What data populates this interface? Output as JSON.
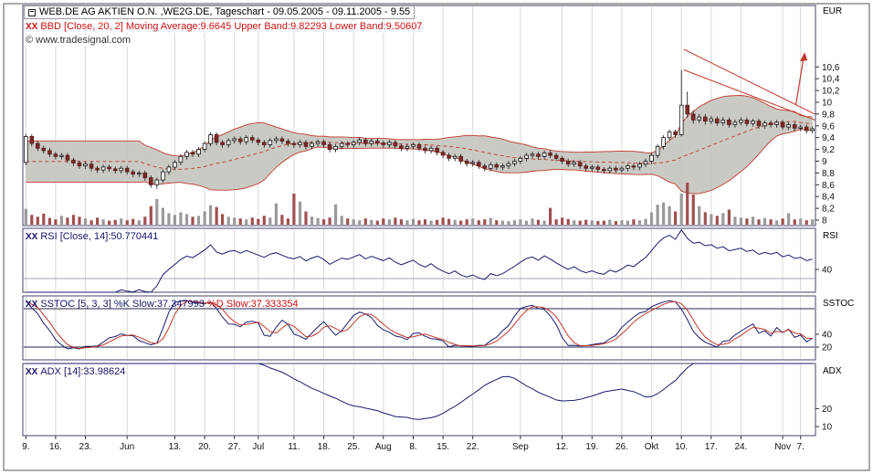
{
  "header": {
    "title": "WEB.DE AG AKTIEN O.N. ,WE2G.DE, Tageschart - 09.05.2005 - 09.11.2005 - 9.55",
    "watermark": "© www.tradesignal.com",
    "currency_label": "EUR"
  },
  "icons": {
    "window": "window-icon",
    "toggle": "XX"
  },
  "indicators": {
    "bbd": {
      "label": "BBD [Close, 20, 2] Moving Average:9.6645 Upper Band:9.82293 Lower Band:9.50607"
    },
    "rsi": {
      "label": "RSI [Close, 14]:50.770441",
      "axis_title": "RSI"
    },
    "sstoc": {
      "label_k": "SSTOC [5, 3, 3] %K Slow:37.347993 ",
      "label_d": "%D Slow:37.333354",
      "axis_title": "SSTOC"
    },
    "adx": {
      "label": "ADX [14]:33.98624",
      "axis_title": "ADX"
    }
  },
  "axes": {
    "price_ticks": [
      {
        "v": 10.6,
        "label": "10,6"
      },
      {
        "v": 10.4,
        "label": "10,4"
      },
      {
        "v": 10.2,
        "label": "10,2"
      },
      {
        "v": 10,
        "label": "10"
      },
      {
        "v": 9.8,
        "label": "9,8"
      },
      {
        "v": 9.6,
        "label": "9,6"
      },
      {
        "v": 9.4,
        "label": "9,4"
      },
      {
        "v": 9.2,
        "label": "9,2"
      },
      {
        "v": 9,
        "label": "9"
      },
      {
        "v": 8.8,
        "label": "8,8"
      },
      {
        "v": 8.6,
        "label": "8,6"
      },
      {
        "v": 8.4,
        "label": "8,4"
      },
      {
        "v": 8.2,
        "label": "8,2"
      },
      {
        "v": 8,
        "label": "8"
      }
    ],
    "x_ticks": [
      {
        "i": 0,
        "label": "9."
      },
      {
        "i": 5,
        "label": "16."
      },
      {
        "i": 10,
        "label": "23."
      },
      {
        "i": 17,
        "label": "Jun"
      },
      {
        "i": 25,
        "label": "13."
      },
      {
        "i": 30,
        "label": "20."
      },
      {
        "i": 35,
        "label": "27."
      },
      {
        "i": 39,
        "label": "Jul"
      },
      {
        "i": 45,
        "label": "11."
      },
      {
        "i": 50,
        "label": "18."
      },
      {
        "i": 55,
        "label": "25."
      },
      {
        "i": 60,
        "label": "Aug"
      },
      {
        "i": 65,
        "label": "8."
      },
      {
        "i": 70,
        "label": "15."
      },
      {
        "i": 75,
        "label": "22."
      },
      {
        "i": 83,
        "label": "Sep"
      },
      {
        "i": 90,
        "label": "12."
      },
      {
        "i": 95,
        "label": "19."
      },
      {
        "i": 100,
        "label": "26."
      },
      {
        "i": 105,
        "label": "Okt"
      },
      {
        "i": 110,
        "label": "10."
      },
      {
        "i": 115,
        "label": "17."
      },
      {
        "i": 120,
        "label": "24."
      },
      {
        "i": 127,
        "label": "Nov"
      },
      {
        "i": 130,
        "label": "7."
      }
    ],
    "rsi_ticks": [
      {
        "v": 40,
        "label": "40"
      }
    ],
    "sstoc_ticks": [
      {
        "v": 40,
        "label": "40"
      },
      {
        "v": 20,
        "label": "20"
      }
    ],
    "adx_ticks": [
      {
        "v": 20,
        "label": "20"
      },
      {
        "v": 10,
        "label": "10"
      }
    ]
  },
  "colors": {
    "grid": "#d9d9d9",
    "panel_border": "#44446a",
    "band_fill": "#c4c4bf",
    "band_line": "#c0392b",
    "candle_up_fill": "#ffffff",
    "candle_down_fill": "#7e2a2a",
    "wick": "#111111",
    "vol_up": "#9a9a9a",
    "vol_down": "#a05050",
    "indicator_line": "#1b1b6f",
    "indicator_line2": "#c0392b",
    "annotation": "#c0392b",
    "text": "#111111"
  },
  "chart_data": {
    "type": "candlestick",
    "symbol": "WE2G.DE",
    "period": "09.05.2005 - 09.11.2005",
    "timeframe": "Tageschart",
    "last_price": 9.55,
    "panels": [
      "price+bollinger+volume",
      "rsi",
      "sstoc",
      "adx"
    ],
    "indicator_params": {
      "bollinger": [
        20,
        2
      ],
      "rsi": [
        14
      ],
      "sstoc": [
        5,
        3,
        3
      ],
      "adx": [
        14
      ]
    },
    "indicator_last_values": {
      "bbd_ma": 9.6645,
      "bbd_upper": 9.82293,
      "bbd_lower": 9.50607,
      "rsi": 50.770441,
      "sstoc_k": 37.347993,
      "sstoc_d": 37.333354,
      "adx": 33.98624
    },
    "ylim": [
      8,
      10.6
    ],
    "candles": [
      [
        8.98,
        9.46,
        8.93,
        9.42
      ],
      [
        9.42,
        9.46,
        9.25,
        9.3
      ],
      [
        9.3,
        9.34,
        9.17,
        9.22
      ],
      [
        9.22,
        9.26,
        9.13,
        9.18
      ],
      [
        9.18,
        9.22,
        9.07,
        9.12
      ],
      [
        9.12,
        9.16,
        9.03,
        9.08
      ],
      [
        9.08,
        9.14,
        9.03,
        9.1
      ],
      [
        9.1,
        9.14,
        8.97,
        9.02
      ],
      [
        9.02,
        9.06,
        8.92,
        8.97
      ],
      [
        8.97,
        9.01,
        8.87,
        8.92
      ],
      [
        8.92,
        8.99,
        8.87,
        8.95
      ],
      [
        8.95,
        8.99,
        8.83,
        8.88
      ],
      [
        8.88,
        8.92,
        8.8,
        8.85
      ],
      [
        8.85,
        8.94,
        8.8,
        8.9
      ],
      [
        8.9,
        8.94,
        8.82,
        8.87
      ],
      [
        8.87,
        8.91,
        8.79,
        8.84
      ],
      [
        8.84,
        8.92,
        8.79,
        8.88
      ],
      [
        8.88,
        8.92,
        8.77,
        8.82
      ],
      [
        8.82,
        8.86,
        8.73,
        8.78
      ],
      [
        8.78,
        8.84,
        8.73,
        8.8
      ],
      [
        8.8,
        8.84,
        8.67,
        8.72
      ],
      [
        8.72,
        8.76,
        8.55,
        8.6
      ],
      [
        8.6,
        8.72,
        8.53,
        8.68
      ],
      [
        8.68,
        8.86,
        8.63,
        8.82
      ],
      [
        8.82,
        8.94,
        8.77,
        8.9
      ],
      [
        8.9,
        9.02,
        8.85,
        8.98
      ],
      [
        8.98,
        9.12,
        8.93,
        9.08
      ],
      [
        9.08,
        9.19,
        9.03,
        9.15
      ],
      [
        9.15,
        9.19,
        9.07,
        9.12
      ],
      [
        9.12,
        9.24,
        9.07,
        9.2
      ],
      [
        9.2,
        9.34,
        9.15,
        9.3
      ],
      [
        9.3,
        9.49,
        9.25,
        9.45
      ],
      [
        9.45,
        9.49,
        9.27,
        9.32
      ],
      [
        9.32,
        9.36,
        9.23,
        9.28
      ],
      [
        9.28,
        9.39,
        9.23,
        9.35
      ],
      [
        9.35,
        9.42,
        9.3,
        9.38
      ],
      [
        9.38,
        9.42,
        9.28,
        9.33
      ],
      [
        9.33,
        9.44,
        9.28,
        9.4
      ],
      [
        9.4,
        9.44,
        9.31,
        9.36
      ],
      [
        9.36,
        9.4,
        9.27,
        9.32
      ],
      [
        9.32,
        9.36,
        9.23,
        9.28
      ],
      [
        9.28,
        9.39,
        9.23,
        9.35
      ],
      [
        9.35,
        9.42,
        9.3,
        9.38
      ],
      [
        9.38,
        9.42,
        9.29,
        9.34
      ],
      [
        9.34,
        9.38,
        9.25,
        9.3
      ],
      [
        9.3,
        9.34,
        9.23,
        9.28
      ],
      [
        9.28,
        9.36,
        9.23,
        9.32
      ],
      [
        9.32,
        9.36,
        9.2,
        9.25
      ],
      [
        9.25,
        9.34,
        9.2,
        9.3
      ],
      [
        9.3,
        9.37,
        9.25,
        9.33
      ],
      [
        9.33,
        9.37,
        9.23,
        9.28
      ],
      [
        9.28,
        9.32,
        9.15,
        9.2
      ],
      [
        9.2,
        9.29,
        9.15,
        9.25
      ],
      [
        9.25,
        9.34,
        9.2,
        9.3
      ],
      [
        9.3,
        9.34,
        9.23,
        9.28
      ],
      [
        9.28,
        9.36,
        9.23,
        9.32
      ],
      [
        9.32,
        9.4,
        9.27,
        9.36
      ],
      [
        9.36,
        9.4,
        9.25,
        9.3
      ],
      [
        9.3,
        9.38,
        9.25,
        9.34
      ],
      [
        9.34,
        9.38,
        9.26,
        9.31
      ],
      [
        9.31,
        9.35,
        9.23,
        9.28
      ],
      [
        9.28,
        9.36,
        9.23,
        9.32
      ],
      [
        9.32,
        9.36,
        9.21,
        9.26
      ],
      [
        9.26,
        9.3,
        9.17,
        9.22
      ],
      [
        9.22,
        9.29,
        9.17,
        9.25
      ],
      [
        9.25,
        9.32,
        9.2,
        9.28
      ],
      [
        9.28,
        9.32,
        9.17,
        9.22
      ],
      [
        9.22,
        9.26,
        9.13,
        9.18
      ],
      [
        9.18,
        9.26,
        9.13,
        9.22
      ],
      [
        9.22,
        9.26,
        9.1,
        9.15
      ],
      [
        9.15,
        9.19,
        9.05,
        9.1
      ],
      [
        9.1,
        9.14,
        9.0,
        9.05
      ],
      [
        9.05,
        9.12,
        9.0,
        9.08
      ],
      [
        9.08,
        9.12,
        8.95,
        9.0
      ],
      [
        9.0,
        9.04,
        8.91,
        8.96
      ],
      [
        8.96,
        9.02,
        8.91,
        8.98
      ],
      [
        8.98,
        9.02,
        8.87,
        8.92
      ],
      [
        8.92,
        8.96,
        8.83,
        8.88
      ],
      [
        8.88,
        8.98,
        8.83,
        8.94
      ],
      [
        8.94,
        8.98,
        8.85,
        8.9
      ],
      [
        8.9,
        8.96,
        8.85,
        8.92
      ],
      [
        8.92,
        9.0,
        8.87,
        8.96
      ],
      [
        8.96,
        9.04,
        8.91,
        9.0
      ],
      [
        9.0,
        9.09,
        8.95,
        9.05
      ],
      [
        9.05,
        9.14,
        9.0,
        9.1
      ],
      [
        9.1,
        9.16,
        9.05,
        9.12
      ],
      [
        9.12,
        9.16,
        9.03,
        9.08
      ],
      [
        9.08,
        9.18,
        9.03,
        9.14
      ],
      [
        9.14,
        9.18,
        9.05,
        9.1
      ],
      [
        9.1,
        9.14,
        9.0,
        9.05
      ],
      [
        9.05,
        9.09,
        8.95,
        9.0
      ],
      [
        9.0,
        9.04,
        8.9,
        8.95
      ],
      [
        8.95,
        9.02,
        8.9,
        8.98
      ],
      [
        8.98,
        9.02,
        8.87,
        8.92
      ],
      [
        8.92,
        8.96,
        8.83,
        8.88
      ],
      [
        8.88,
        8.94,
        8.83,
        8.9
      ],
      [
        8.9,
        8.94,
        8.81,
        8.86
      ],
      [
        8.86,
        8.9,
        8.79,
        8.84
      ],
      [
        8.84,
        8.92,
        8.79,
        8.88
      ],
      [
        8.88,
        8.92,
        8.8,
        8.85
      ],
      [
        8.85,
        8.92,
        8.8,
        8.88
      ],
      [
        8.88,
        8.96,
        8.83,
        8.92
      ],
      [
        8.92,
        8.96,
        8.85,
        8.9
      ],
      [
        8.9,
        8.99,
        8.85,
        8.95
      ],
      [
        8.95,
        9.04,
        8.9,
        9.0
      ],
      [
        9.0,
        9.14,
        8.95,
        9.1
      ],
      [
        9.1,
        9.29,
        9.05,
        9.25
      ],
      [
        9.25,
        9.44,
        9.2,
        9.4
      ],
      [
        9.4,
        9.54,
        9.35,
        9.5
      ],
      [
        9.5,
        9.54,
        9.4,
        9.45
      ],
      [
        9.45,
        10.55,
        9.42,
        9.95
      ],
      [
        9.95,
        10.18,
        9.74,
        9.8
      ],
      [
        9.8,
        9.86,
        9.64,
        9.7
      ],
      [
        9.7,
        9.8,
        9.65,
        9.75
      ],
      [
        9.75,
        9.8,
        9.62,
        9.68
      ],
      [
        9.68,
        9.77,
        9.63,
        9.72
      ],
      [
        9.72,
        9.76,
        9.6,
        9.65
      ],
      [
        9.65,
        9.75,
        9.6,
        9.7
      ],
      [
        9.7,
        9.74,
        9.57,
        9.62
      ],
      [
        9.62,
        9.71,
        9.57,
        9.66
      ],
      [
        9.66,
        9.75,
        9.61,
        9.7
      ],
      [
        9.7,
        9.74,
        9.59,
        9.64
      ],
      [
        9.64,
        9.72,
        9.59,
        9.68
      ],
      [
        9.68,
        9.72,
        9.55,
        9.6
      ],
      [
        9.6,
        9.69,
        9.55,
        9.65
      ],
      [
        9.65,
        9.69,
        9.57,
        9.62
      ],
      [
        9.62,
        9.7,
        9.57,
        9.66
      ],
      [
        9.66,
        9.7,
        9.53,
        9.58
      ],
      [
        9.58,
        9.66,
        9.53,
        9.62
      ],
      [
        9.62,
        9.66,
        9.51,
        9.56
      ],
      [
        9.56,
        9.62,
        9.51,
        9.58
      ],
      [
        9.58,
        9.62,
        9.47,
        9.52
      ],
      [
        9.52,
        9.59,
        9.47,
        9.55
      ]
    ],
    "volumes": [
      36,
      22,
      18,
      25,
      15,
      12,
      20,
      16,
      22,
      18,
      14,
      10,
      16,
      12,
      9,
      11,
      14,
      10,
      13,
      10,
      18,
      42,
      58,
      38,
      26,
      22,
      28,
      24,
      18,
      20,
      30,
      44,
      40,
      24,
      18,
      16,
      14,
      12,
      16,
      13,
      20,
      16,
      48,
      22,
      14,
      70,
      52,
      30,
      18,
      15,
      12,
      16,
      46,
      20,
      14,
      12,
      10,
      14,
      11,
      9,
      14,
      12,
      16,
      12,
      10,
      13,
      10,
      12,
      9,
      11,
      16,
      13,
      11,
      9,
      12,
      14,
      10,
      12,
      15,
      10,
      9,
      8,
      10,
      12,
      9,
      14,
      11,
      9,
      38,
      12,
      16,
      13,
      10,
      9,
      11,
      10,
      8,
      9,
      11,
      8,
      10,
      9,
      12,
      10,
      13,
      28,
      45,
      50,
      42,
      30,
      70,
      95,
      68,
      42,
      28,
      24,
      20,
      26,
      34,
      18,
      16,
      14,
      18,
      12,
      15,
      12,
      10,
      14,
      26,
      12,
      14,
      10,
      12
    ],
    "rsi_ref_lines": [
      30
    ],
    "sstoc_ref_lines": [
      80,
      20
    ],
    "annotations": {
      "trendlines": [
        {
          "i1": 110.4,
          "p1": 10.9,
          "i2": 132.4,
          "p2": 9.8
        },
        {
          "i1": 110.4,
          "p1": 10.55,
          "i2": 132.4,
          "p2": 9.7
        }
      ],
      "arrow": {
        "i1": 129.2,
        "p1": 9.95,
        "i2": 130.6,
        "p2": 10.82
      }
    }
  }
}
